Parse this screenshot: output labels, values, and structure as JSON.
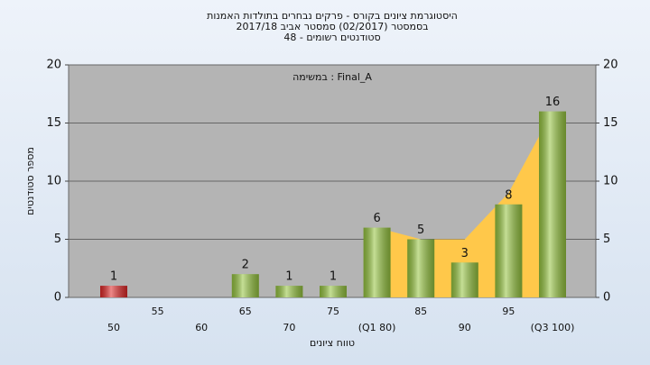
{
  "chart_data": {
    "type": "bar",
    "title_lines": [
      "היסטוגרמת ציונים בקורס - פרקים נבחרים בתולדות האמנות",
      "בסמסטר  (02/2017)  סמסטר אביב 2017/18",
      "סטודנטים רשומים - 48"
    ],
    "annotation": "במשימה : Final_A",
    "y_label": "מספר סטודנטים",
    "x_label": "טווח ציונים",
    "categories": [
      "50",
      "55",
      "60",
      "65",
      "70",
      "75",
      "(Q1 80)",
      "85",
      "90",
      "95",
      "(Q3 100)"
    ],
    "values": [
      1,
      0,
      0,
      2,
      1,
      1,
      6,
      5,
      3,
      8,
      16
    ],
    "bar_colors": [
      "#e02828",
      "#95c43f",
      "#95c43f",
      "#95c43f",
      "#95c43f",
      "#95c43f",
      "#95c43f",
      "#95c43f",
      "#95c43f",
      "#95c43f",
      "#95c43f"
    ],
    "area": {
      "values": [
        null,
        null,
        null,
        null,
        null,
        null,
        6,
        5,
        5,
        9,
        16
      ],
      "color": "#ffc84a"
    },
    "ylim": [
      0,
      20
    ],
    "yticks": [
      0,
      5,
      10,
      15,
      20
    ],
    "grid": true
  }
}
